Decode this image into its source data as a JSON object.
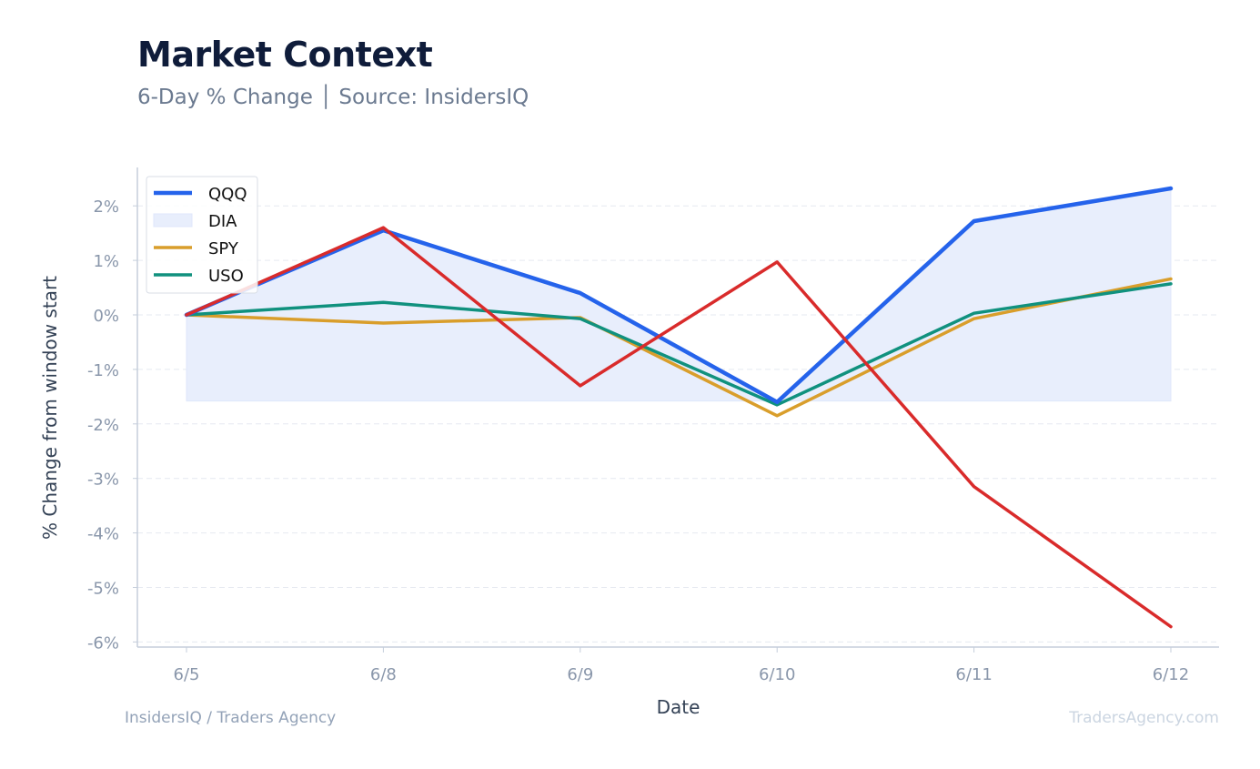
{
  "header": {
    "title": "Market Context",
    "subtitle": "6-Day % Change │ Source: InsidersIQ"
  },
  "footer": {
    "left": "InsidersIQ / Traders Agency",
    "right": "TradersAgency.com"
  },
  "chart_data": {
    "type": "line",
    "xlabel": "Date",
    "ylabel": "% Change from window start",
    "categories": [
      "6/5",
      "6/8",
      "6/9",
      "6/10",
      "6/11",
      "6/12"
    ],
    "ylim": [
      -6.1,
      2.7
    ],
    "yticks": [
      2,
      1,
      0,
      -1,
      -2,
      -3,
      -4,
      -5,
      -6
    ],
    "yticklabels": [
      "2%",
      "1%",
      "0%",
      "-1%",
      "-2%",
      "-3%",
      "-4%",
      "-5%",
      "-6%"
    ],
    "grid": true,
    "legend_position": "top-left",
    "band": {
      "name": "DIA",
      "color": "#e8eefc",
      "upper_follows": "QQQ",
      "lower": -1.58
    },
    "series": [
      {
        "name": "QQQ",
        "color": "#2563eb",
        "values": [
          0.0,
          1.55,
          0.4,
          -1.6,
          1.72,
          2.32
        ]
      },
      {
        "name": "SPY",
        "color": "#d99e2b",
        "values": [
          0.0,
          -0.15,
          -0.05,
          -1.85,
          -0.07,
          0.66
        ]
      },
      {
        "name": "USO",
        "color": "#10917e",
        "values": [
          0.0,
          0.23,
          -0.07,
          -1.65,
          0.03,
          0.57
        ]
      },
      {
        "name": "",
        "color": "#d92b2b",
        "values": [
          0.0,
          1.6,
          -1.3,
          0.97,
          -3.15,
          -5.72
        ]
      }
    ],
    "legend": [
      "QQQ",
      "DIA",
      "SPY",
      "USO"
    ]
  }
}
